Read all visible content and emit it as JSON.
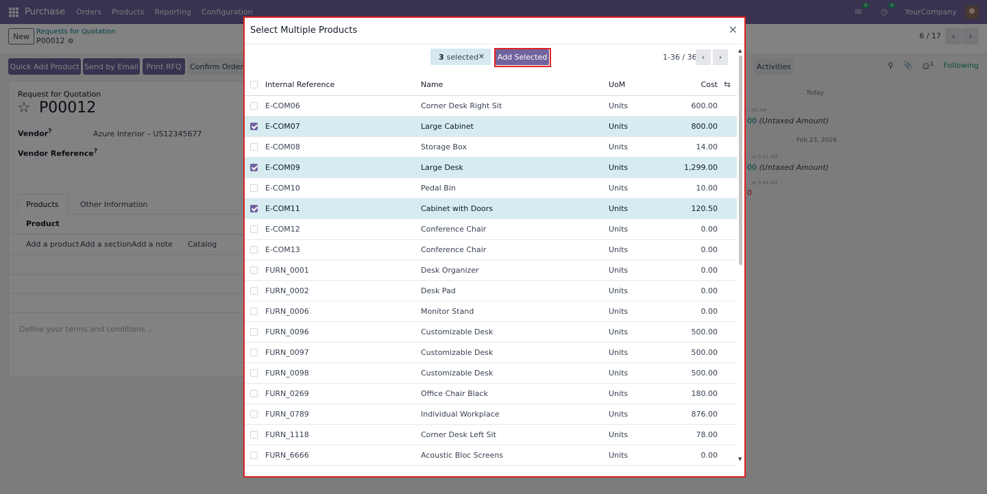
{
  "topnav": {
    "app_name": "Purchase",
    "menu": [
      "Orders",
      "Products",
      "Reporting",
      "Configuration"
    ],
    "messages_count": "8",
    "activities_count": "4",
    "company": "YourCompany"
  },
  "breadcrumb": {
    "new_label": "New",
    "parent": "Requests for Quotation",
    "current": "P00012"
  },
  "record_pager": "6 / 17",
  "actions": {
    "quick_add": "Quick Add Product",
    "send_email": "Send by Email",
    "print_rfq": "Print RFQ",
    "confirm_order": "Confirm Order"
  },
  "chatter_bar": {
    "activities": "Activities",
    "follower_count": "1",
    "following": "Following"
  },
  "form": {
    "label": "Request for Quotation",
    "name": "P00012",
    "vendor_label": "Vendor",
    "vendor_value": "Azure Interior – US12345677",
    "vendor_ref_label": "Vendor Reference",
    "help_mark": "?",
    "tabs": [
      "Products",
      "Other Information"
    ],
    "product_column": "Product",
    "add_product": "Add a product",
    "add_section": "Add a section",
    "add_note": "Add a note",
    "catalog": "Catalog",
    "terms_placeholder": "Define your terms and conditions ..."
  },
  "chatter": {
    "today": "Today",
    "time1": "...40 AM",
    "amount1": "00",
    "untaxed": "(Untaxed Amount)",
    "date2": "Feb 23, 2026",
    "time2": "...at 9:51 AM",
    "amount2": "00",
    "time3": "...at 9:45 AM",
    "amount3": "0"
  },
  "dialog": {
    "title": "Select Multiple Products",
    "selected_count": "3",
    "selected_label": "selected",
    "add_selected": "Add Selected",
    "pager": "1-36 / 36",
    "columns": {
      "ref": "Internal Reference",
      "name": "Name",
      "uom": "UoM",
      "cost": "Cost"
    },
    "rows": [
      {
        "ref": "E-COM06",
        "name": "Corner Desk Right Sit",
        "uom": "Units",
        "cost": "600.00",
        "selected": false
      },
      {
        "ref": "E-COM07",
        "name": "Large Cabinet",
        "uom": "Units",
        "cost": "800.00",
        "selected": true
      },
      {
        "ref": "E-COM08",
        "name": "Storage Box",
        "uom": "Units",
        "cost": "14.00",
        "selected": false
      },
      {
        "ref": "E-COM09",
        "name": "Large Desk",
        "uom": "Units",
        "cost": "1,299.00",
        "selected": true
      },
      {
        "ref": "E-COM10",
        "name": "Pedal Bin",
        "uom": "Units",
        "cost": "10.00",
        "selected": false
      },
      {
        "ref": "E-COM11",
        "name": "Cabinet with Doors",
        "uom": "Units",
        "cost": "120.50",
        "selected": true
      },
      {
        "ref": "E-COM12",
        "name": "Conference Chair",
        "uom": "Units",
        "cost": "0.00",
        "selected": false
      },
      {
        "ref": "E-COM13",
        "name": "Conference Chair",
        "uom": "Units",
        "cost": "0.00",
        "selected": false
      },
      {
        "ref": "FURN_0001",
        "name": "Desk Organizer",
        "uom": "Units",
        "cost": "0.00",
        "selected": false
      },
      {
        "ref": "FURN_0002",
        "name": "Desk Pad",
        "uom": "Units",
        "cost": "0.00",
        "selected": false
      },
      {
        "ref": "FURN_0006",
        "name": "Monitor Stand",
        "uom": "Units",
        "cost": "0.00",
        "selected": false
      },
      {
        "ref": "FURN_0096",
        "name": "Customizable Desk",
        "uom": "Units",
        "cost": "500.00",
        "selected": false
      },
      {
        "ref": "FURN_0097",
        "name": "Customizable Desk",
        "uom": "Units",
        "cost": "500.00",
        "selected": false
      },
      {
        "ref": "FURN_0098",
        "name": "Customizable Desk",
        "uom": "Units",
        "cost": "500.00",
        "selected": false
      },
      {
        "ref": "FURN_0269",
        "name": "Office Chair Black",
        "uom": "Units",
        "cost": "180.00",
        "selected": false
      },
      {
        "ref": "FURN_0789",
        "name": "Individual Workplace",
        "uom": "Units",
        "cost": "876.00",
        "selected": false
      },
      {
        "ref": "FURN_1118",
        "name": "Corner Desk Left Sit",
        "uom": "Units",
        "cost": "78.00",
        "selected": false
      },
      {
        "ref": "FURN_6666",
        "name": "Acoustic Bloc Screens",
        "uom": "Units",
        "cost": "0.00",
        "selected": false
      }
    ]
  }
}
